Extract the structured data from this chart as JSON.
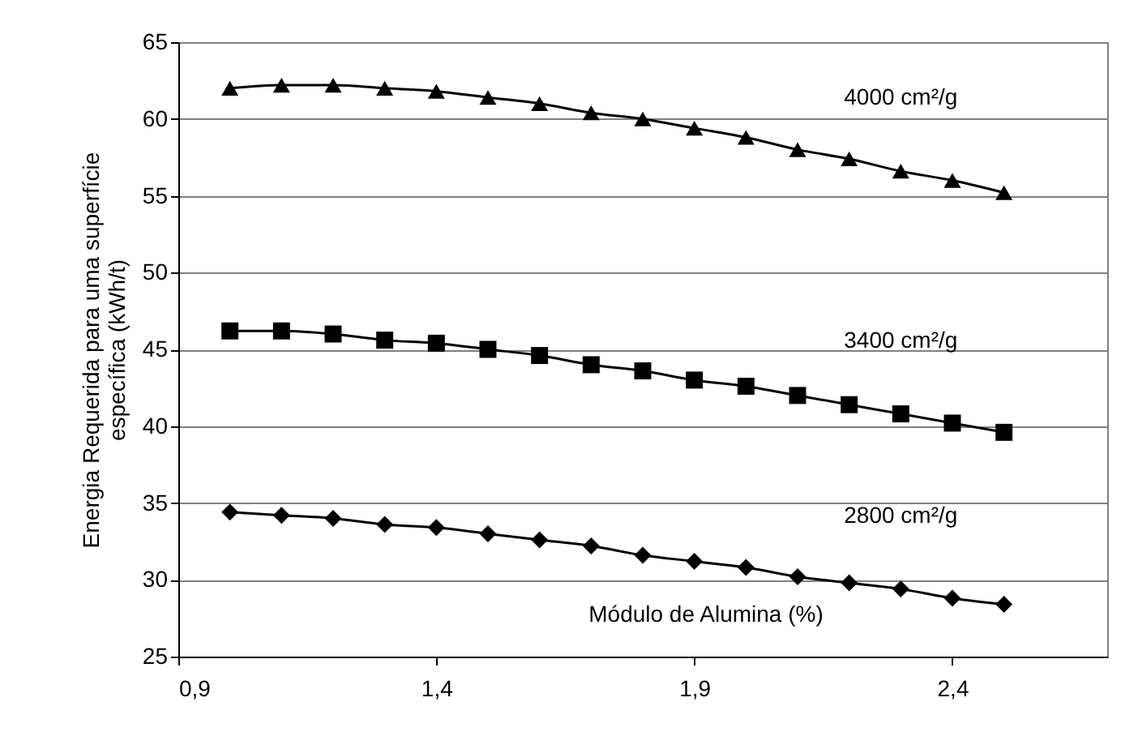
{
  "chart_data": {
    "type": "line",
    "xlabel": "Módulo de Alumina (%)",
    "ylabel": [
      "Energia Requerida para uma superfície",
      "específica (kWh/t)"
    ],
    "x": [
      1.0,
      1.1,
      1.2,
      1.3,
      1.4,
      1.5,
      1.6,
      1.7,
      1.8,
      1.9,
      2.0,
      2.1,
      2.2,
      2.3,
      2.4,
      2.5
    ],
    "series": [
      {
        "name": "4000 cm²/g",
        "color": "#000000",
        "marker": "triangle",
        "values": [
          62.0,
          62.2,
          62.2,
          62.0,
          61.8,
          61.4,
          61.0,
          60.4,
          60.0,
          59.4,
          58.8,
          58.0,
          57.4,
          56.6,
          56.0,
          55.2
        ]
      },
      {
        "name": "3400 cm²/g",
        "color": "#000000",
        "marker": "square",
        "values": [
          46.2,
          46.2,
          46.0,
          45.6,
          45.4,
          45.0,
          44.6,
          44.0,
          43.6,
          43.0,
          42.6,
          42.0,
          41.4,
          40.8,
          40.2,
          39.6
        ]
      },
      {
        "name": "2800 cm²/g",
        "color": "#000000",
        "marker": "diamond",
        "values": [
          34.4,
          34.2,
          34.0,
          33.6,
          33.4,
          33.0,
          32.6,
          32.2,
          31.6,
          31.2,
          30.8,
          30.2,
          29.8,
          29.4,
          28.8,
          28.4
        ]
      }
    ],
    "xlim": [
      0.9,
      2.7
    ],
    "xticks": [
      {
        "value": 0.9,
        "label": "0,9"
      },
      {
        "value": 1.4,
        "label": "1,4"
      },
      {
        "value": 1.9,
        "label": "1,9"
      },
      {
        "value": 2.4,
        "label": "2,4"
      }
    ],
    "ylim": [
      25,
      65
    ],
    "yticks": [
      25,
      30,
      35,
      40,
      45,
      50,
      55,
      60,
      65
    ],
    "grid": "y",
    "legend": false,
    "line_style": "solid"
  }
}
